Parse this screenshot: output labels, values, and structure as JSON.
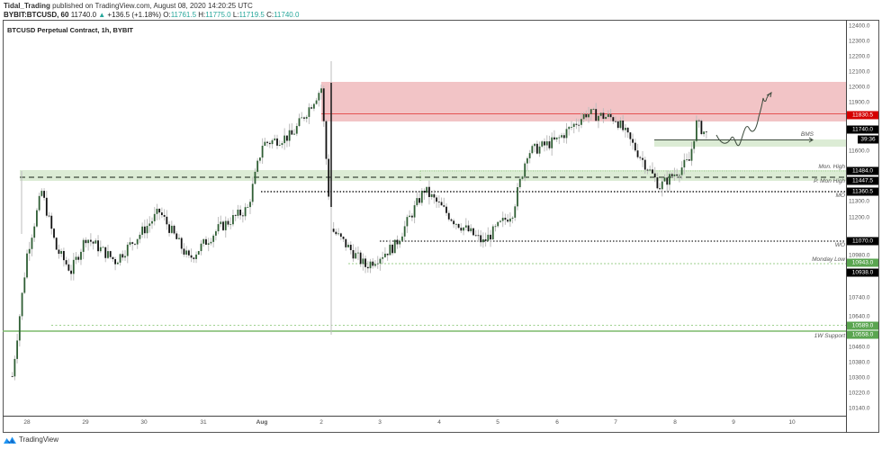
{
  "header": {
    "author": "Tidal_Trading",
    "published": "published on TradingView.com, August 08, 2020 14:20:25 UTC",
    "symbol": "BYBIT:BTCUSD, 60",
    "last": "11740.0",
    "change_arrow": "▲",
    "change": "+136.5 (+1.18%)",
    "o_label": "O:",
    "o": "11761.5",
    "h_label": "H:",
    "h": "11775.0",
    "l_label": "L:",
    "l": "11719.5",
    "c_label": "C:",
    "c": "11740.0"
  },
  "chart_title": "BTCUSD Perpetual Contract, 1h, BYBIT",
  "footer": {
    "brand": "TradingView"
  },
  "colors": {
    "bull": "#2f5e34",
    "bear": "#111111",
    "wick": "#bdbdbd",
    "supply_zone": "#f2c4c6",
    "supply_line": "#e55353",
    "demand_zone": "#dcecd5",
    "support_green": "#7cba6c",
    "tag_black": "#000000",
    "tag_red": "#d50000",
    "tag_green": "#5aa550"
  },
  "chart_data": {
    "type": "candlestick",
    "title": "BTCUSD Perpetual Contract, 1h, BYBIT",
    "xlabel": "",
    "ylabel": "Price (USD)",
    "ylim": [
      10100,
      12450
    ],
    "grid": false,
    "x_ticks": [
      "28",
      "29",
      "30",
      "31",
      "Aug",
      "2",
      "3",
      "4",
      "5",
      "6",
      "7",
      "8",
      "9",
      "10"
    ],
    "y_ticks": [
      "12400.0",
      "12300.0",
      "12200.0",
      "12100.0",
      "12000.0",
      "11900.0",
      "11600.0",
      "11300.0",
      "11200.0",
      "10980.0",
      "10860.0",
      "10740.0",
      "10640.0",
      "10460.0",
      "10380.0",
      "10300.0",
      "10220.0",
      "10140.0"
    ],
    "price_tags": [
      {
        "value": "11830.5",
        "kind": "red"
      },
      {
        "value": "11740.0",
        "kind": "black"
      },
      {
        "value": "39:36",
        "kind": "black"
      },
      {
        "value": "11484.0",
        "kind": "black"
      },
      {
        "value": "11447.5",
        "kind": "black"
      },
      {
        "value": "11360.5",
        "kind": "black"
      },
      {
        "value": "11070.0",
        "kind": "black"
      },
      {
        "value": "10943.0",
        "kind": "green"
      },
      {
        "value": "10938.0",
        "kind": "black"
      },
      {
        "value": "10589.0",
        "kind": "green"
      },
      {
        "value": "10558.0",
        "kind": "green"
      }
    ],
    "levels": [
      {
        "label": "Mon. High",
        "value": 11484.0,
        "style": "dotted-green"
      },
      {
        "label": "P. Mon High",
        "value": 11447.5,
        "style": "dashed"
      },
      {
        "label": "MO",
        "value": 11360.5,
        "style": "dotted"
      },
      {
        "label": "WO",
        "value": 11070.0,
        "style": "dotted"
      },
      {
        "label": "Monday Low",
        "value": 10943.0,
        "style": "dotted-green"
      },
      {
        "label": "1W Support",
        "value": 10558.0,
        "style": "solid-green"
      }
    ],
    "zones": [
      {
        "name": "supply",
        "from": 11830.5,
        "to": 12030
      },
      {
        "name": "demand-PMonHigh",
        "from": 11410,
        "to": 11490
      },
      {
        "name": "BMS-demand",
        "from": 11640,
        "to": 11680
      }
    ],
    "annotations": [
      "BMS"
    ],
    "last_price": 11740.0,
    "approx_path": [
      {
        "x": "Jul 27 18:00",
        "p": 10330
      },
      {
        "x": "Jul 28 00:00",
        "p": 11050
      },
      {
        "x": "Jul 28 06:00",
        "p": 11420
      },
      {
        "x": "Jul 28 12:00",
        "p": 11080
      },
      {
        "x": "Jul 28 18:00",
        "p": 10950
      },
      {
        "x": "Jul 29 00:00",
        "p": 11150
      },
      {
        "x": "Jul 29 12:00",
        "p": 11010
      },
      {
        "x": "Jul 30 00:00",
        "p": 11200
      },
      {
        "x": "Jul 30 06:00",
        "p": 11300
      },
      {
        "x": "Jul 30 18:00",
        "p": 11020
      },
      {
        "x": "Jul 31 06:00",
        "p": 11200
      },
      {
        "x": "Jul 31 18:00",
        "p": 11320
      },
      {
        "x": "Aug 01 00:00",
        "p": 11700
      },
      {
        "x": "Aug 01 12:00",
        "p": 11750
      },
      {
        "x": "Aug 02 00:00",
        "p": 12030
      },
      {
        "x": "Aug 02 04:00",
        "p": 11200
      },
      {
        "x": "Aug 02 18:00",
        "p": 10980
      },
      {
        "x": "Aug 03 06:00",
        "p": 11100
      },
      {
        "x": "Aug 03 18:00",
        "p": 11430
      },
      {
        "x": "Aug 04 06:00",
        "p": 11250
      },
      {
        "x": "Aug 04 18:00",
        "p": 11120
      },
      {
        "x": "Aug 05 06:00",
        "p": 11300
      },
      {
        "x": "Aug 05 12:00",
        "p": 11650
      },
      {
        "x": "Aug 06 00:00",
        "p": 11720
      },
      {
        "x": "Aug 06 12:00",
        "p": 11880
      },
      {
        "x": "Aug 07 00:00",
        "p": 11850
      },
      {
        "x": "Aug 07 18:00",
        "p": 11450
      },
      {
        "x": "Aug 08 06:00",
        "p": 11600
      },
      {
        "x": "Aug 08 09:00",
        "p": 11820
      },
      {
        "x": "Aug 08 14:00",
        "p": 11740
      }
    ]
  }
}
